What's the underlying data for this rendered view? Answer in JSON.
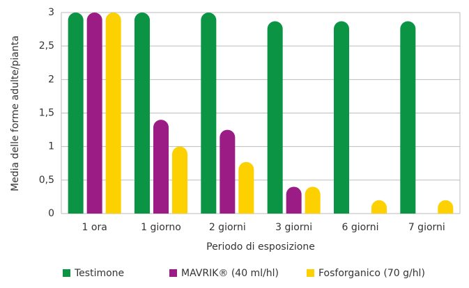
{
  "chart_data": {
    "type": "bar",
    "ylabel": "Media delle forme adulte/pianta",
    "xlabel": "Periodo di esposizione",
    "categories": [
      "1 ora",
      "1 giorno",
      "2 giorni",
      "3 giorni",
      "6 giorni",
      "7 giorni"
    ],
    "series": [
      {
        "name": "Testimone",
        "color": "#0b9444",
        "values": [
          3,
          3,
          3,
          2.87,
          2.87,
          2.87
        ]
      },
      {
        "name": "MAVRIK® (40 ml/hl)",
        "color": "#9c1c85",
        "values": [
          3,
          1.4,
          1.25,
          0.4,
          0,
          0
        ]
      },
      {
        "name": "Fosforganico (70 g/hl)",
        "color": "#fdd000",
        "values": [
          3,
          1.0,
          0.77,
          0.4,
          0.2,
          0.2
        ]
      }
    ],
    "ylim": [
      0,
      3
    ],
    "yticks": [
      0,
      {
        "value": 0.5,
        "label": "0,5"
      },
      1,
      {
        "value": 1.5,
        "label": "1,5"
      },
      2,
      {
        "value": 2.5,
        "label": "2,5"
      },
      3
    ],
    "grid": true
  }
}
